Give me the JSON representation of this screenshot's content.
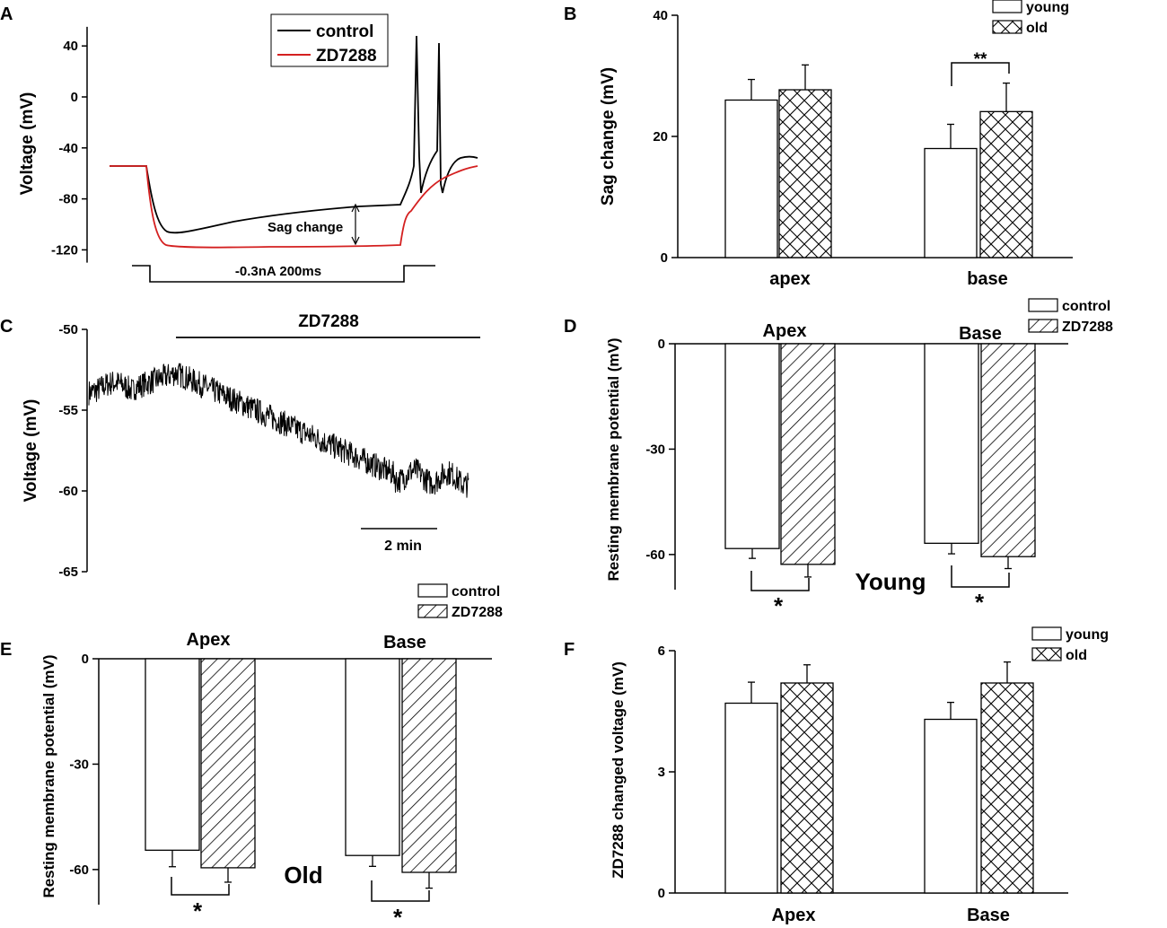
{
  "figure": {
    "panel_labels": [
      "A",
      "B",
      "C",
      "D",
      "E",
      "F"
    ]
  },
  "chart_data": [
    {
      "panel": "A",
      "type": "line",
      "ylabel": "Voltage (mV)",
      "ylim": [
        -130,
        55
      ],
      "yticks": [
        40,
        0,
        -40,
        -80,
        -120
      ],
      "legend": [
        "control",
        "ZD7288"
      ],
      "series_colors": [
        "#000000",
        "#d42020"
      ],
      "annotations": {
        "sag": "Sag change",
        "stimulus": "-0.3nA   200ms"
      }
    },
    {
      "panel": "B",
      "type": "bar",
      "ylabel": "Sag  change (mV)",
      "ylim": [
        0,
        40
      ],
      "yticks": [
        0,
        20,
        40
      ],
      "categories": [
        "apex",
        "base"
      ],
      "series": [
        {
          "name": "young",
          "pattern": "none",
          "values": [
            26,
            18
          ],
          "errors": [
            3.4,
            4
          ]
        },
        {
          "name": "old",
          "pattern": "crosshatch",
          "values": [
            27.7,
            24.1
          ],
          "errors": [
            4.1,
            4.7
          ]
        }
      ],
      "significance": [
        {
          "category": "base",
          "label": "**"
        }
      ]
    },
    {
      "panel": "C",
      "type": "line",
      "ylabel": "Voltage (mV)",
      "ylim": [
        -65,
        -50
      ],
      "yticks": [
        -50,
        -55,
        -60,
        -65
      ],
      "drug_label": "ZD7288",
      "scale_bar": "2 min",
      "legend": [
        "control",
        "ZD7288"
      ]
    },
    {
      "panel": "D",
      "type": "bar",
      "ylabel": "Resting membrane potential (mV)",
      "ylim": [
        -70,
        0
      ],
      "yticks": [
        0,
        -30,
        -60
      ],
      "categories": [
        "Apex",
        "Base"
      ],
      "group_label": "Young",
      "series": [
        {
          "name": "control",
          "pattern": "none",
          "values": [
            -58.3,
            -56.8
          ],
          "errors": [
            2.8,
            3
          ]
        },
        {
          "name": "ZD7288",
          "pattern": "diagonal",
          "values": [
            -62.8,
            -60.6
          ],
          "errors": [
            3.6,
            3.4
          ]
        }
      ],
      "significance": [
        {
          "category": "Apex",
          "label": "*"
        },
        {
          "category": "Base",
          "label": "*"
        }
      ]
    },
    {
      "panel": "E",
      "type": "bar",
      "ylabel": "Resting membrane potential (mV)",
      "ylim": [
        -70,
        0
      ],
      "yticks": [
        0,
        -30,
        -60
      ],
      "categories": [
        "Apex",
        "Base"
      ],
      "group_label": "Old",
      "series": [
        {
          "name": "control",
          "pattern": "none",
          "values": [
            -54.5,
            -56
          ],
          "errors": [
            4.7,
            3.1
          ]
        },
        {
          "name": "ZD7288",
          "pattern": "diagonal",
          "values": [
            -59.5,
            -60.8
          ],
          "errors": [
            4.1,
            4.5
          ]
        }
      ],
      "significance": [
        {
          "category": "Apex",
          "label": "*"
        },
        {
          "category": "Base",
          "label": "*"
        }
      ]
    },
    {
      "panel": "F",
      "type": "bar",
      "ylabel": "ZD7288 changed voltage (mV)",
      "ylim": [
        0,
        6
      ],
      "yticks": [
        0,
        3,
        6
      ],
      "categories": [
        "Apex",
        "Base"
      ],
      "series": [
        {
          "name": "young",
          "pattern": "none",
          "values": [
            4.7,
            4.3
          ],
          "errors": [
            0.52,
            0.42
          ]
        },
        {
          "name": "old",
          "pattern": "crosshatch",
          "values": [
            5.2,
            5.2
          ],
          "errors": [
            0.45,
            0.52
          ]
        }
      ]
    }
  ]
}
